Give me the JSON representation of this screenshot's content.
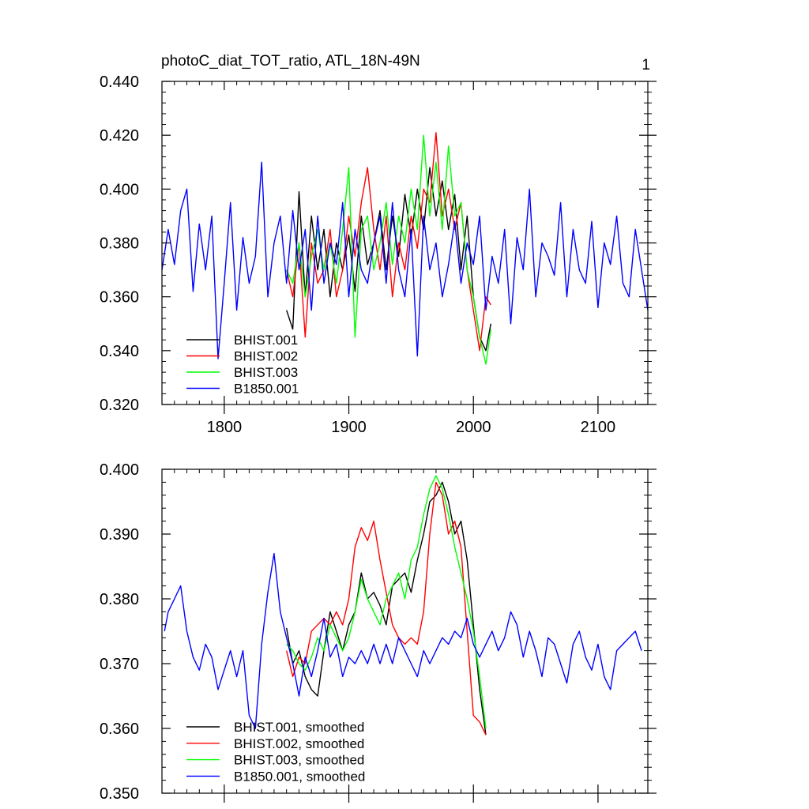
{
  "colors": {
    "BHIST.001": "#000000",
    "BHIST.002": "#ff0000",
    "BHIST.003": "#00ff00",
    "B1850.001": "#0000ff"
  },
  "chart_data": [
    {
      "type": "line",
      "title": "photoC_diat_TOT_ratio, ATL_18N-49N",
      "corner_label": "1",
      "xlim": [
        1750,
        2140
      ],
      "ylim": [
        0.32,
        0.44
      ],
      "xticks": [
        1800,
        1900,
        2000,
        2100
      ],
      "xticklabels": [
        "1800",
        "1900",
        "2000",
        "2100"
      ],
      "yticks": [
        0.32,
        0.34,
        0.36,
        0.38,
        0.4,
        0.42,
        0.44
      ],
      "yticklabels": [
        "0.320",
        "0.340",
        "0.360",
        "0.380",
        "0.400",
        "0.420",
        "0.440"
      ],
      "grid": false,
      "legend_position": "bottom-left",
      "series": [
        {
          "name": "BHIST.001",
          "color": "#000000",
          "x": [
            1850,
            1855,
            1860,
            1865,
            1870,
            1875,
            1880,
            1885,
            1890,
            1895,
            1900,
            1905,
            1910,
            1915,
            1920,
            1925,
            1930,
            1935,
            1940,
            1945,
            1950,
            1955,
            1960,
            1965,
            1970,
            1975,
            1980,
            1985,
            1990,
            1995,
            2000,
            2005,
            2010,
            2014
          ],
          "y": [
            0.355,
            0.348,
            0.399,
            0.36,
            0.39,
            0.37,
            0.385,
            0.36,
            0.38,
            0.37,
            0.383,
            0.362,
            0.39,
            0.372,
            0.38,
            0.392,
            0.37,
            0.39,
            0.375,
            0.398,
            0.382,
            0.4,
            0.385,
            0.408,
            0.39,
            0.403,
            0.385,
            0.398,
            0.37,
            0.39,
            0.36,
            0.345,
            0.34,
            0.35
          ]
        },
        {
          "name": "BHIST.002",
          "color": "#ff0000",
          "x": [
            1850,
            1855,
            1860,
            1865,
            1870,
            1875,
            1880,
            1885,
            1890,
            1895,
            1900,
            1905,
            1910,
            1915,
            1920,
            1925,
            1930,
            1935,
            1940,
            1945,
            1950,
            1955,
            1960,
            1965,
            1970,
            1975,
            1980,
            1985,
            1990,
            1995,
            2000,
            2005,
            2010,
            2014
          ],
          "y": [
            0.37,
            0.36,
            0.38,
            0.345,
            0.38,
            0.365,
            0.37,
            0.385,
            0.36,
            0.37,
            0.39,
            0.375,
            0.395,
            0.408,
            0.385,
            0.37,
            0.39,
            0.36,
            0.38,
            0.37,
            0.39,
            0.378,
            0.4,
            0.395,
            0.421,
            0.39,
            0.4,
            0.385,
            0.395,
            0.37,
            0.355,
            0.34,
            0.36,
            0.357
          ]
        },
        {
          "name": "BHIST.003",
          "color": "#00ff00",
          "x": [
            1850,
            1855,
            1860,
            1865,
            1870,
            1875,
            1880,
            1885,
            1890,
            1895,
            1900,
            1905,
            1910,
            1915,
            1920,
            1925,
            1930,
            1935,
            1940,
            1945,
            1950,
            1955,
            1960,
            1965,
            1970,
            1975,
            1980,
            1985,
            1990,
            1995,
            2000,
            2005,
            2010,
            2014
          ],
          "y": [
            0.37,
            0.365,
            0.38,
            0.36,
            0.375,
            0.385,
            0.37,
            0.38,
            0.365,
            0.385,
            0.408,
            0.345,
            0.385,
            0.39,
            0.37,
            0.38,
            0.395,
            0.372,
            0.39,
            0.38,
            0.4,
            0.385,
            0.42,
            0.39,
            0.41,
            0.385,
            0.416,
            0.39,
            0.395,
            0.37,
            0.36,
            0.345,
            0.335,
            0.348
          ]
        },
        {
          "name": "B1850.001",
          "color": "#0000ff",
          "x": [
            1750,
            1755,
            1760,
            1765,
            1770,
            1775,
            1780,
            1785,
            1790,
            1795,
            1800,
            1805,
            1810,
            1815,
            1820,
            1825,
            1830,
            1835,
            1840,
            1845,
            1850,
            1855,
            1860,
            1865,
            1870,
            1875,
            1880,
            1885,
            1890,
            1895,
            1900,
            1905,
            1910,
            1915,
            1920,
            1925,
            1930,
            1935,
            1940,
            1945,
            1950,
            1955,
            1960,
            1965,
            1970,
            1975,
            1980,
            1985,
            1990,
            1995,
            2000,
            2005,
            2010,
            2015,
            2020,
            2025,
            2030,
            2035,
            2040,
            2045,
            2050,
            2055,
            2060,
            2065,
            2070,
            2075,
            2080,
            2085,
            2090,
            2095,
            2100,
            2105,
            2110,
            2115,
            2120,
            2125,
            2130,
            2135,
            2140
          ],
          "y": [
            0.37,
            0.385,
            0.372,
            0.392,
            0.4,
            0.362,
            0.387,
            0.37,
            0.39,
            0.337,
            0.365,
            0.395,
            0.355,
            0.382,
            0.365,
            0.375,
            0.41,
            0.36,
            0.38,
            0.39,
            0.365,
            0.392,
            0.37,
            0.385,
            0.355,
            0.39,
            0.365,
            0.38,
            0.372,
            0.395,
            0.36,
            0.385,
            0.37,
            0.365,
            0.38,
            0.39,
            0.365,
            0.395,
            0.37,
            0.36,
            0.385,
            0.338,
            0.39,
            0.37,
            0.38,
            0.36,
            0.372,
            0.388,
            0.365,
            0.38,
            0.372,
            0.39,
            0.355,
            0.375,
            0.365,
            0.385,
            0.35,
            0.382,
            0.37,
            0.4,
            0.36,
            0.38,
            0.375,
            0.368,
            0.395,
            0.36,
            0.385,
            0.37,
            0.365,
            0.388,
            0.356,
            0.38,
            0.372,
            0.39,
            0.365,
            0.36,
            0.385,
            0.37,
            0.355
          ]
        }
      ]
    },
    {
      "type": "line",
      "xlim": [
        1750,
        2140
      ],
      "ylim": [
        0.35,
        0.4
      ],
      "xticks": [
        1800,
        1900,
        2000,
        2100
      ],
      "yticks": [
        0.35,
        0.36,
        0.37,
        0.38,
        0.39,
        0.4
      ],
      "yticklabels": [
        "0.350",
        "0.360",
        "0.370",
        "0.380",
        "0.390",
        "0.400"
      ],
      "grid": false,
      "legend_position": "bottom-left",
      "series": [
        {
          "name": "BHIST.001, smoothed",
          "color": "#000000",
          "x": [
            1850,
            1855,
            1860,
            1865,
            1870,
            1875,
            1880,
            1885,
            1890,
            1895,
            1900,
            1905,
            1910,
            1915,
            1920,
            1925,
            1930,
            1935,
            1940,
            1945,
            1950,
            1955,
            1960,
            1965,
            1970,
            1975,
            1980,
            1985,
            1990,
            1995,
            2000,
            2005,
            2010
          ],
          "y": [
            0.3755,
            0.37,
            0.372,
            0.368,
            0.366,
            0.365,
            0.372,
            0.378,
            0.375,
            0.372,
            0.376,
            0.378,
            0.384,
            0.38,
            0.381,
            0.379,
            0.376,
            0.382,
            0.383,
            0.384,
            0.381,
            0.386,
            0.39,
            0.395,
            0.396,
            0.398,
            0.395,
            0.39,
            0.392,
            0.386,
            0.376,
            0.366,
            0.359
          ]
        },
        {
          "name": "BHIST.002, smoothed",
          "color": "#ff0000",
          "x": [
            1850,
            1855,
            1860,
            1865,
            1870,
            1875,
            1880,
            1885,
            1890,
            1895,
            1900,
            1905,
            1910,
            1915,
            1920,
            1925,
            1930,
            1935,
            1940,
            1945,
            1950,
            1955,
            1960,
            1965,
            1970,
            1975,
            1980,
            1985,
            1990,
            1995,
            2000,
            2005,
            2010
          ],
          "y": [
            0.372,
            0.368,
            0.371,
            0.37,
            0.375,
            0.376,
            0.377,
            0.376,
            0.378,
            0.376,
            0.38,
            0.388,
            0.391,
            0.389,
            0.392,
            0.386,
            0.381,
            0.376,
            0.374,
            0.373,
            0.374,
            0.373,
            0.378,
            0.39,
            0.398,
            0.396,
            0.39,
            0.392,
            0.388,
            0.375,
            0.362,
            0.361,
            0.359
          ]
        },
        {
          "name": "BHIST.003, smoothed",
          "color": "#00ff00",
          "x": [
            1850,
            1855,
            1860,
            1865,
            1870,
            1875,
            1880,
            1885,
            1890,
            1895,
            1900,
            1905,
            1910,
            1915,
            1920,
            1925,
            1930,
            1935,
            1940,
            1945,
            1950,
            1955,
            1960,
            1965,
            1970,
            1975,
            1980,
            1985,
            1990,
            1995,
            2000,
            2005,
            2010
          ],
          "y": [
            0.373,
            0.372,
            0.37,
            0.369,
            0.371,
            0.374,
            0.372,
            0.376,
            0.374,
            0.372,
            0.374,
            0.378,
            0.383,
            0.38,
            0.378,
            0.376,
            0.38,
            0.382,
            0.384,
            0.38,
            0.386,
            0.388,
            0.393,
            0.397,
            0.399,
            0.397,
            0.393,
            0.388,
            0.384,
            0.38,
            0.375,
            0.368,
            0.36
          ]
        },
        {
          "name": "B1850.001, smoothed",
          "color": "#0000ff",
          "x": [
            1752,
            1755,
            1760,
            1765,
            1770,
            1775,
            1780,
            1785,
            1790,
            1795,
            1800,
            1805,
            1810,
            1815,
            1820,
            1825,
            1830,
            1835,
            1840,
            1845,
            1850,
            1855,
            1860,
            1865,
            1870,
            1875,
            1880,
            1885,
            1890,
            1895,
            1900,
            1905,
            1910,
            1915,
            1920,
            1925,
            1930,
            1935,
            1940,
            1945,
            1950,
            1955,
            1960,
            1965,
            1970,
            1975,
            1980,
            1985,
            1990,
            1995,
            2000,
            2005,
            2010,
            2015,
            2020,
            2025,
            2030,
            2035,
            2040,
            2045,
            2050,
            2055,
            2060,
            2065,
            2070,
            2075,
            2080,
            2085,
            2090,
            2095,
            2100,
            2105,
            2110,
            2115,
            2120,
            2125,
            2130,
            2135
          ],
          "y": [
            0.375,
            0.378,
            0.38,
            0.382,
            0.375,
            0.371,
            0.369,
            0.373,
            0.371,
            0.366,
            0.369,
            0.372,
            0.368,
            0.372,
            0.362,
            0.36,
            0.373,
            0.381,
            0.387,
            0.378,
            0.374,
            0.37,
            0.365,
            0.371,
            0.368,
            0.372,
            0.377,
            0.371,
            0.373,
            0.368,
            0.371,
            0.37,
            0.372,
            0.37,
            0.373,
            0.37,
            0.373,
            0.37,
            0.374,
            0.372,
            0.37,
            0.368,
            0.372,
            0.37,
            0.372,
            0.374,
            0.373,
            0.375,
            0.374,
            0.377,
            0.373,
            0.371,
            0.373,
            0.375,
            0.372,
            0.374,
            0.378,
            0.376,
            0.371,
            0.375,
            0.372,
            0.368,
            0.374,
            0.373,
            0.37,
            0.367,
            0.373,
            0.375,
            0.371,
            0.369,
            0.373,
            0.368,
            0.366,
            0.372,
            0.373,
            0.374,
            0.375,
            0.372
          ]
        }
      ]
    }
  ]
}
